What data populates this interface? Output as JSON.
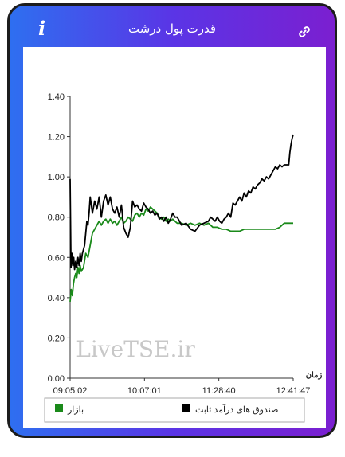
{
  "header": {
    "title": "قدرت پول درشت",
    "info_icon": "info-icon",
    "link_icon": "link-icon"
  },
  "watermark": "LiveTSE.ir",
  "colors": {
    "fund_series": "#000000",
    "market_series": "#1a8a1a",
    "gradient_start": "#2e6ff0",
    "gradient_end": "#7b1fd0"
  },
  "chart_data": {
    "type": "line",
    "title": "",
    "xlabel": "زمان",
    "ylabel": "",
    "ylim": [
      0,
      1.4
    ],
    "yticks": [
      "0.00",
      "0.20",
      "0.40",
      "0.60",
      "0.80",
      "1.00",
      "1.20",
      "1.40"
    ],
    "xticks": [
      "09:05:02",
      "10:07:01",
      "11:28:40",
      "12:41:47"
    ],
    "xlim": [
      0,
      100
    ],
    "grid": false,
    "legend_position": "bottom",
    "series": [
      {
        "name": "صندوق های درآمد ثابت",
        "color": "#000000",
        "x": [
          0,
          0.4,
          0.8,
          1.2,
          1.6,
          2,
          2.5,
          3,
          3.5,
          4,
          4.5,
          5,
          5.5,
          6,
          6.5,
          7,
          7.5,
          8,
          8.5,
          9,
          9.5,
          10,
          11,
          12,
          13,
          14,
          15,
          16,
          17,
          18,
          19,
          20,
          21,
          22,
          23,
          24,
          25,
          26,
          27,
          28,
          29,
          30,
          31,
          32,
          33,
          34,
          35,
          36,
          37,
          38,
          39,
          40,
          41,
          42,
          43,
          44,
          45,
          46,
          47,
          48,
          50,
          52,
          54,
          56,
          58,
          60,
          62,
          63,
          64,
          65,
          66,
          67,
          68,
          69,
          70,
          71,
          72,
          73,
          74,
          75,
          76,
          77,
          78,
          79,
          80,
          81,
          82,
          83,
          84,
          85,
          86,
          87,
          88,
          89,
          90,
          91,
          92,
          93,
          94,
          95,
          96,
          97,
          98,
          98.5,
          99,
          99.5,
          100
        ],
        "values": [
          0.99,
          0.55,
          0.62,
          0.56,
          0.6,
          0.54,
          0.58,
          0.55,
          0.6,
          0.56,
          0.62,
          0.58,
          0.62,
          0.64,
          0.66,
          0.72,
          0.78,
          0.76,
          0.82,
          0.9,
          0.86,
          0.82,
          0.88,
          0.84,
          0.9,
          0.8,
          0.88,
          0.91,
          0.86,
          0.9,
          0.84,
          0.82,
          0.85,
          0.8,
          0.86,
          0.75,
          0.72,
          0.7,
          0.75,
          0.88,
          0.85,
          0.86,
          0.84,
          0.83,
          0.87,
          0.85,
          0.84,
          0.82,
          0.83,
          0.81,
          0.82,
          0.79,
          0.8,
          0.78,
          0.8,
          0.77,
          0.79,
          0.82,
          0.8,
          0.8,
          0.76,
          0.77,
          0.74,
          0.73,
          0.76,
          0.77,
          0.78,
          0.8,
          0.79,
          0.78,
          0.8,
          0.78,
          0.77,
          0.79,
          0.8,
          0.82,
          0.8,
          0.87,
          0.86,
          0.88,
          0.9,
          0.88,
          0.92,
          0.9,
          0.93,
          0.92,
          0.95,
          0.94,
          0.96,
          0.97,
          0.99,
          0.98,
          1.0,
          0.99,
          1.01,
          1.03,
          1.05,
          1.04,
          1.06,
          1.05,
          1.06,
          1.06,
          1.06,
          1.12,
          1.16,
          1.19,
          1.21
        ]
      },
      {
        "name": "بازار",
        "color": "#1a8a1a",
        "x": [
          0,
          0.5,
          1,
          1.5,
          2,
          2.5,
          3,
          3.5,
          4,
          4.5,
          5,
          6,
          7,
          8,
          9,
          10,
          11,
          12,
          13,
          14,
          15,
          16,
          17,
          18,
          19,
          20,
          21,
          22,
          23,
          24,
          25,
          26,
          27,
          28,
          29,
          30,
          31,
          32,
          33,
          34,
          35,
          36,
          37,
          38,
          39,
          40,
          41,
          42,
          43,
          44,
          45,
          46,
          47,
          48,
          50,
          52,
          54,
          56,
          58,
          60,
          62,
          64,
          66,
          68,
          70,
          72,
          74,
          76,
          78,
          80,
          82,
          84,
          86,
          88,
          90,
          92,
          94,
          95,
          96,
          98,
          100
        ],
        "values": [
          0.38,
          0.44,
          0.41,
          0.47,
          0.5,
          0.52,
          0.5,
          0.55,
          0.52,
          0.56,
          0.53,
          0.55,
          0.62,
          0.6,
          0.66,
          0.72,
          0.74,
          0.76,
          0.78,
          0.76,
          0.78,
          0.79,
          0.77,
          0.79,
          0.77,
          0.78,
          0.76,
          0.78,
          0.8,
          0.77,
          0.78,
          0.8,
          0.79,
          0.78,
          0.81,
          0.82,
          0.8,
          0.82,
          0.81,
          0.84,
          0.83,
          0.85,
          0.84,
          0.83,
          0.82,
          0.8,
          0.79,
          0.8,
          0.78,
          0.79,
          0.78,
          0.79,
          0.78,
          0.77,
          0.77,
          0.76,
          0.77,
          0.76,
          0.77,
          0.76,
          0.77,
          0.75,
          0.75,
          0.74,
          0.74,
          0.73,
          0.73,
          0.73,
          0.74,
          0.74,
          0.74,
          0.74,
          0.74,
          0.74,
          0.74,
          0.74,
          0.75,
          0.76,
          0.77,
          0.77,
          0.77
        ]
      }
    ]
  }
}
